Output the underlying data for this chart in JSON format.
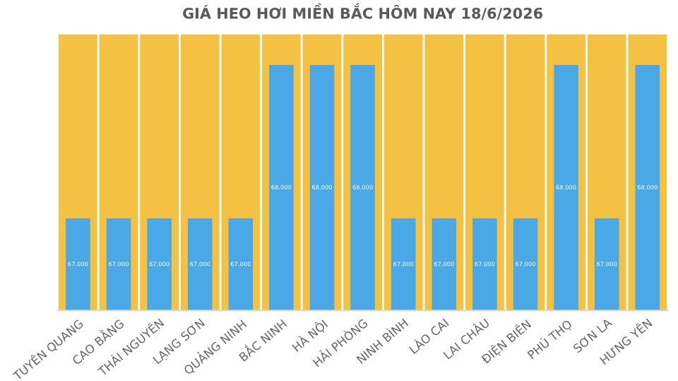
{
  "chart_data": {
    "type": "bar",
    "title": "GIÁ HEO HƠI MIỀN BẮC HÔM NAY 18/6/2026",
    "categories": [
      "TUYÊN QUANG",
      "CAO BẰNG",
      "THÁI NGUYÊN",
      "LẠNG SƠN",
      "QUẢNG NINH",
      "BẮC NINH",
      "HÀ NỘI",
      "HẢI PHÒNG",
      "NINH BÌNH",
      "LÀO CAI",
      "LAI CHÂU",
      "ĐIỆN BIÊN",
      "PHÚ THỌ",
      "SƠN LA",
      "HƯNG YÊN"
    ],
    "series": [
      {
        "color": "#f4c142",
        "values": [
          68200,
          68200,
          68200,
          68200,
          68200,
          68200,
          68200,
          68200,
          68200,
          68200,
          68200,
          68200,
          68200,
          68200,
          68200
        ]
      },
      {
        "color": "#4aa8e6",
        "values": [
          67000,
          67000,
          67000,
          67000,
          67000,
          68000,
          68000,
          68000,
          67000,
          67000,
          67000,
          67000,
          68000,
          67000,
          68000
        ],
        "value_labels": [
          "67.000",
          "67.000",
          "67.000",
          "67.000",
          "67.000",
          "68.000",
          "68.000",
          "68.000",
          "67.000",
          "67.000",
          "67.000",
          "67.000",
          "68.000",
          "67.000",
          "68.000"
        ]
      }
    ],
    "ylim": [
      66400,
      68200
    ],
    "tick_labels": "x",
    "grid": false,
    "legend": false
  }
}
